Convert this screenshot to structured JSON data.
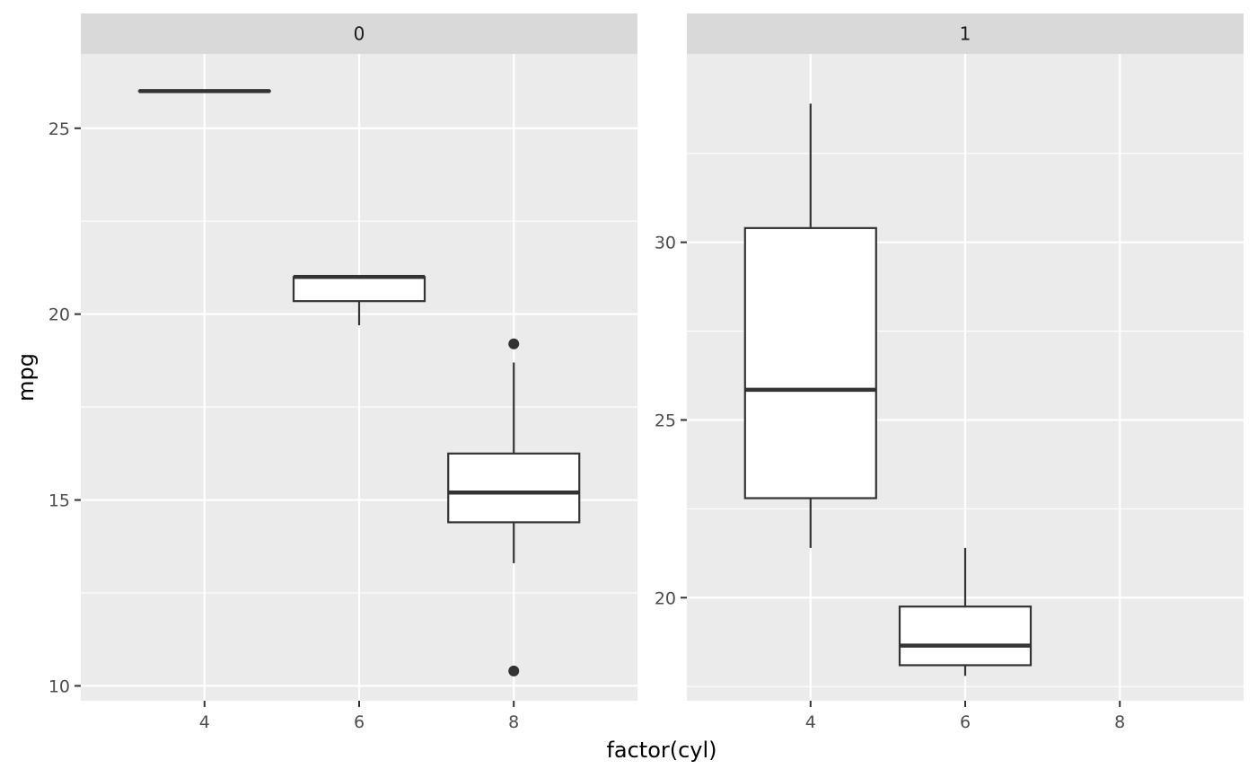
{
  "chart_data": {
    "type": "boxplot",
    "xlabel": "factor(cyl)",
    "ylabel": "mpg",
    "x_categories": [
      "4",
      "6",
      "8"
    ],
    "panels": [
      {
        "strip": "0",
        "ylim": [
          9.6,
          27.0
        ],
        "y_ticks": [
          10,
          15,
          20,
          25
        ],
        "boxes": [
          {
            "category": "4",
            "min": 26.0,
            "q1": 26.0,
            "median": 26.0,
            "q3": 26.0,
            "max": 26.0,
            "outliers": []
          },
          {
            "category": "6",
            "min": 19.7,
            "q1": 20.35,
            "median": 21.0,
            "q3": 21.0,
            "max": 21.0,
            "outliers": []
          },
          {
            "category": "8",
            "min": 13.3,
            "q1": 14.4,
            "median": 15.2,
            "q3": 16.25,
            "max": 18.7,
            "outliers": [
              19.2,
              10.4
            ]
          }
        ]
      },
      {
        "strip": "1",
        "ylim": [
          17.1,
          35.3
        ],
        "y_ticks": [
          20,
          25,
          30
        ],
        "boxes": [
          {
            "category": "4",
            "min": 21.4,
            "q1": 22.8,
            "median": 25.85,
            "q3": 30.4,
            "max": 33.9,
            "outliers": []
          },
          {
            "category": "6",
            "min": 17.8,
            "q1": 18.1,
            "median": 18.65,
            "q3": 19.75,
            "max": 21.4,
            "outliers": []
          }
        ]
      }
    ]
  }
}
